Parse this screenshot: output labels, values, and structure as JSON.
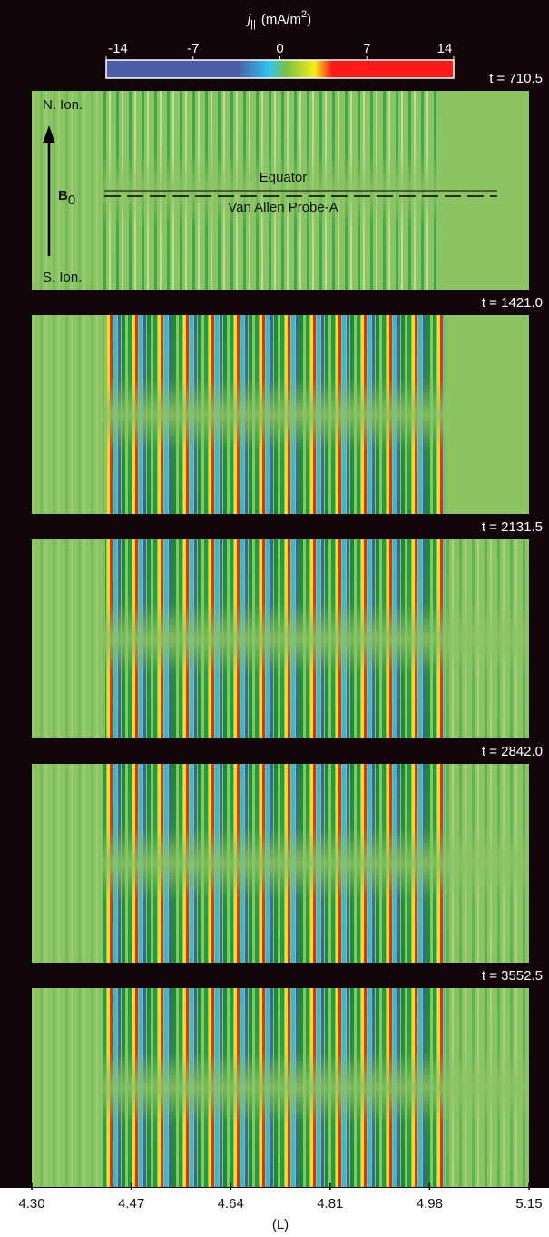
{
  "chart_data": {
    "type": "heatmap",
    "colorbar": {
      "label_parts": [
        "j",
        "||",
        "(mA/m",
        "2",
        ")"
      ],
      "clim": [
        -14,
        14
      ],
      "cticks": [
        -14,
        -7,
        0,
        7,
        14
      ],
      "colors": [
        "#4a5ea8",
        "#4a5ea8",
        "#2fc6f0",
        "#7dc242",
        "#f4ec1c",
        "#ff1a1a",
        "#ff1a1a"
      ]
    },
    "panels": [
      {
        "label": "t = 710.5"
      },
      {
        "label": "t = 1421.0"
      },
      {
        "label": "t = 2131.5"
      },
      {
        "label": "t = 2842.0"
      },
      {
        "label": "t = 3552.5"
      }
    ],
    "annotations": {
      "north": "N. Ion.",
      "south": "S. Ion.",
      "field": [
        "B",
        "0"
      ],
      "equator": "Equator",
      "probe": "Van Allen Probe-A"
    },
    "xlim": [
      4.3,
      5.15
    ],
    "xticks": [
      {
        "value": 4.3,
        "label": "4.30"
      },
      4.47,
      4.64,
      4.81,
      4.98,
      5.15
    ],
    "xlabel": "(L)"
  }
}
